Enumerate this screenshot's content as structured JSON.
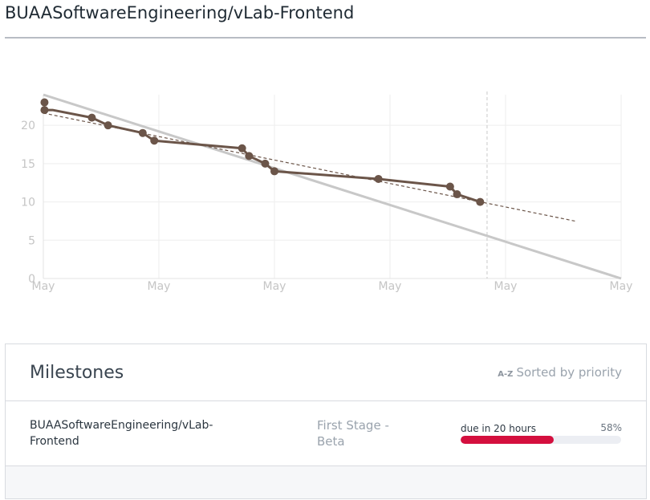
{
  "header": {
    "title": "BUAASoftwareEngineering/vLab-Frontend"
  },
  "chart_data": {
    "type": "line",
    "x_tick_labels": [
      "May",
      "May",
      "May",
      "May",
      "May",
      "May"
    ],
    "y_ticks": [
      0,
      5,
      10,
      15,
      20
    ],
    "ylim": [
      0,
      24
    ],
    "series": [
      {
        "role": "actual",
        "color": "#6b5549",
        "points": [
          [
            0.05,
            23
          ],
          [
            0.05,
            22
          ],
          [
            0.4,
            22
          ],
          [
            2.1,
            21
          ],
          [
            2.8,
            20
          ],
          [
            4.3,
            19
          ],
          [
            4.8,
            18
          ],
          [
            8.6,
            17
          ],
          [
            8.9,
            16
          ],
          [
            9.6,
            15
          ],
          [
            10.0,
            14
          ],
          [
            14.5,
            13
          ],
          [
            17.6,
            12
          ],
          [
            17.9,
            11
          ],
          [
            18.9,
            10
          ]
        ]
      },
      {
        "role": "ideal",
        "color": "#c8c8c8",
        "points": [
          [
            0,
            24
          ],
          [
            25,
            0
          ]
        ]
      },
      {
        "role": "trend",
        "color": "#6b5549",
        "dashed": true,
        "points": [
          [
            0,
            21.6
          ],
          [
            23.0,
            7.5
          ]
        ]
      }
    ],
    "marker": {
      "x": 19.2,
      "dashed": true
    }
  },
  "milestones": {
    "title": "Milestones",
    "sort_icon": "A-Z",
    "sort_label": "Sorted by priority",
    "items": [
      {
        "repo": "BUAASoftwareEngineering/vLab-Frontend",
        "name": "First Stage - Beta",
        "due": "due in 20 hours",
        "percent_label": "58%",
        "percent": 58,
        "bar_color": "#d40f3e"
      }
    ]
  }
}
